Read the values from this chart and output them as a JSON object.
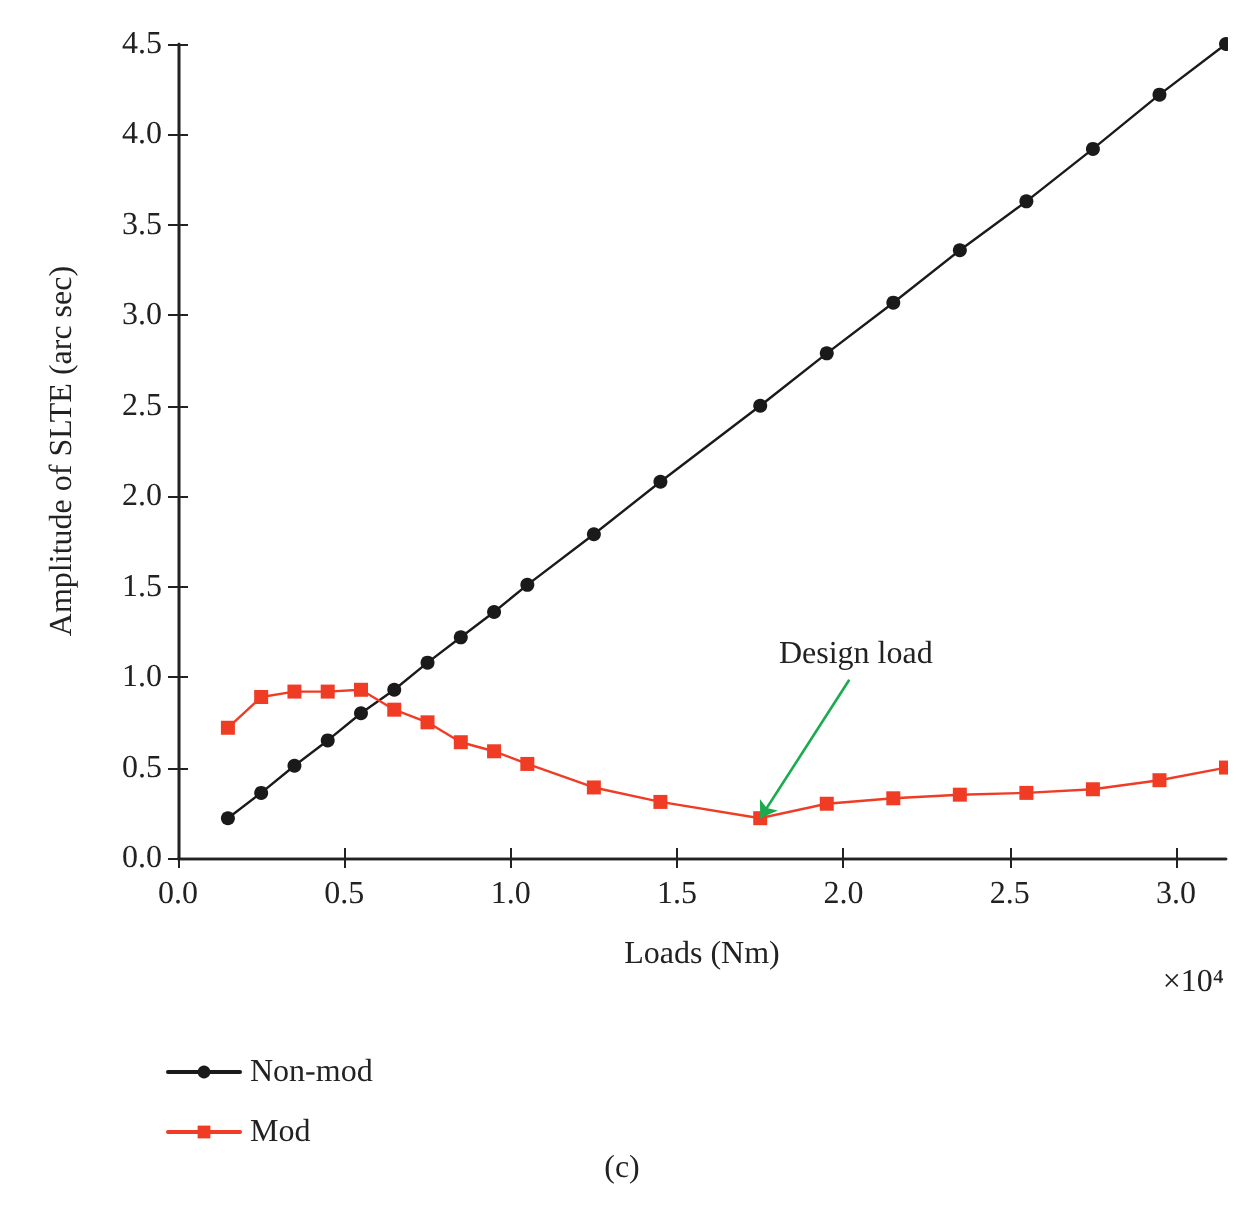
{
  "chart_data": {
    "type": "line",
    "xlabel": "Loads (Nm)",
    "ylabel": "Amplitude of SLTE (arc sec)",
    "x": [
      0.15,
      0.25,
      0.35,
      0.45,
      0.55,
      0.65,
      0.75,
      0.85,
      0.95,
      1.05,
      1.25,
      1.45,
      1.75,
      1.95,
      2.15,
      2.35,
      2.55,
      2.75,
      2.95,
      3.15
    ],
    "series": [
      {
        "name": "Non-mod",
        "color": "#1a1a1a",
        "marker": "circle",
        "values": [
          0.22,
          0.36,
          0.51,
          0.65,
          0.8,
          0.93,
          1.08,
          1.22,
          1.36,
          1.51,
          1.79,
          2.08,
          2.5,
          2.79,
          3.07,
          3.36,
          3.63,
          3.92,
          4.22,
          4.5
        ]
      },
      {
        "name": "Mod",
        "color": "#f03c24",
        "marker": "square",
        "values": [
          0.72,
          0.89,
          0.92,
          0.92,
          0.93,
          0.82,
          0.75,
          0.64,
          0.59,
          0.52,
          0.39,
          0.31,
          0.22,
          0.3,
          0.33,
          0.35,
          0.36,
          0.38,
          0.43,
          0.5
        ]
      }
    ],
    "xlim": [
      0,
      3.15
    ],
    "xticks": [
      {
        "value": 0,
        "label": "0.0"
      },
      0.5,
      {
        "value": 1,
        "label": "1.0"
      },
      1.5,
      {
        "value": 2,
        "label": "2.0"
      },
      2.5,
      {
        "value": 3,
        "label": "3.0"
      }
    ],
    "ylim": [
      0,
      4.5
    ],
    "yticks": [
      {
        "value": 0,
        "label": "0.0"
      },
      {
        "value": 0.5,
        "label": "0.5"
      },
      {
        "value": 1,
        "label": "1.0"
      },
      {
        "value": 1.5,
        "label": "1.5"
      },
      {
        "value": 2,
        "label": "2.0"
      },
      {
        "value": 2.5,
        "label": "2.5"
      },
      {
        "value": 3,
        "label": "3.0"
      },
      {
        "value": 3.5,
        "label": "3.5"
      },
      {
        "value": 4,
        "label": "4.0"
      },
      {
        "value": 4.5,
        "label": "4.5"
      }
    ],
    "grid": false,
    "legend": "bottom left",
    "line_style": "solid",
    "annotations": [
      "×10⁴",
      {
        "text": "Design load",
        "x": 1.75,
        "y": 0.22
      },
      "(c)"
    ]
  }
}
